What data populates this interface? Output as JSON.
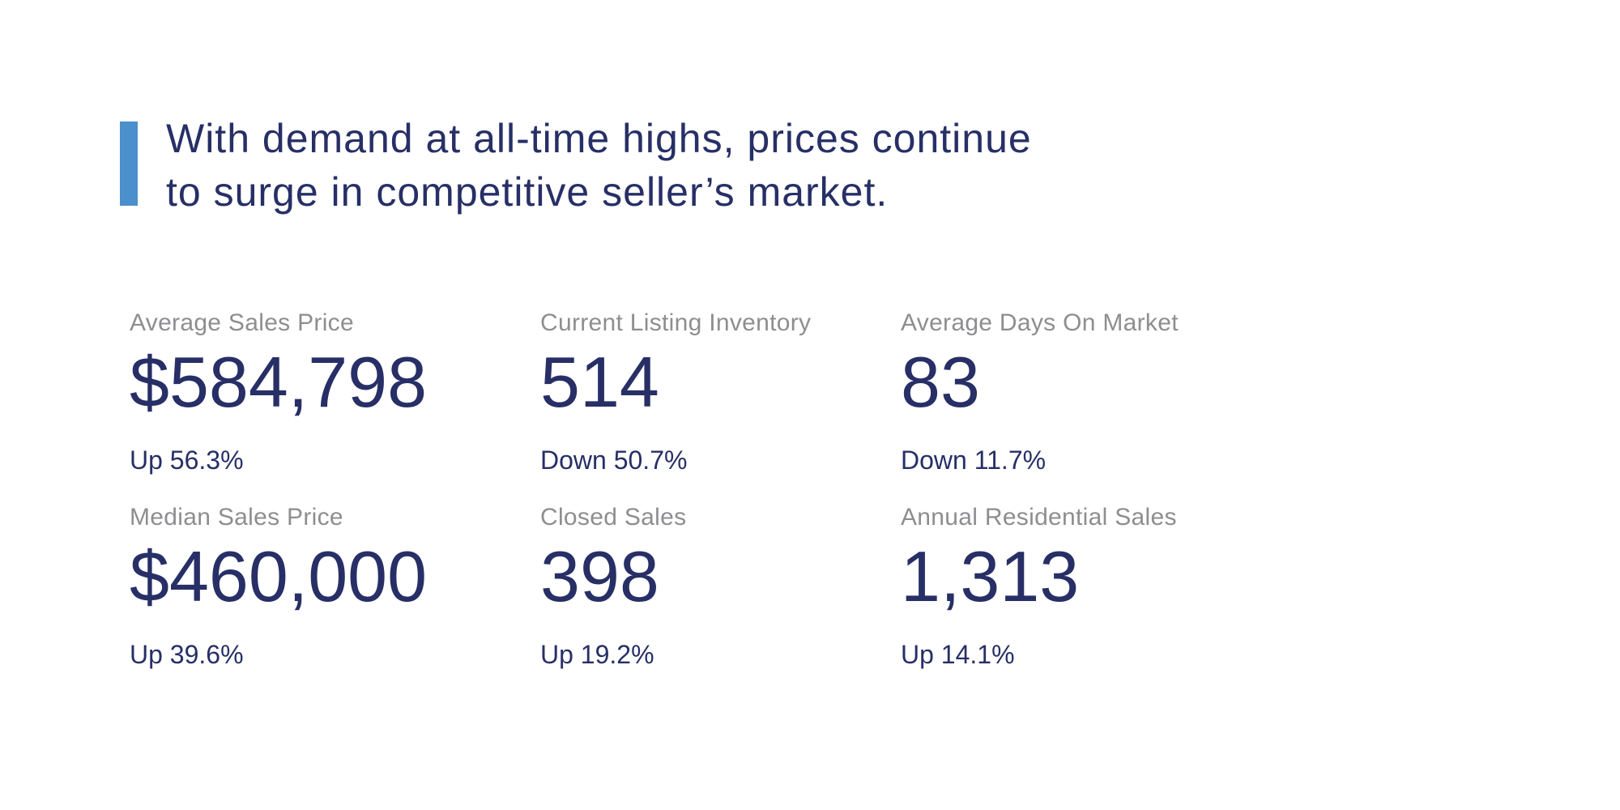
{
  "headline": {
    "line1": "With demand at all-time highs, prices continue",
    "line2": "to surge in competitive seller’s market."
  },
  "colors": {
    "navy": "#272F66",
    "gray": "#8E8E91",
    "accent": "#4B8FCC",
    "bg": "#FFFFFF"
  },
  "stats": [
    {
      "label": "Average Sales Price",
      "value": "$584,798",
      "change": "Up 56.3%",
      "direction": "up"
    },
    {
      "label": "Current Listing Inventory",
      "value": "514",
      "change": "Down 50.7%",
      "direction": "down"
    },
    {
      "label": "Average Days On Market",
      "value": "83",
      "change": "Down 11.7%",
      "direction": "down"
    },
    {
      "label": "Median Sales Price",
      "value": "$460,000",
      "change": "Up 39.6%",
      "direction": "up"
    },
    {
      "label": "Closed Sales",
      "value": "398",
      "change": "Up 19.2%",
      "direction": "up"
    },
    {
      "label": "Annual Residential Sales",
      "value": "1,313",
      "change": "Up 14.1%",
      "direction": "up"
    }
  ]
}
